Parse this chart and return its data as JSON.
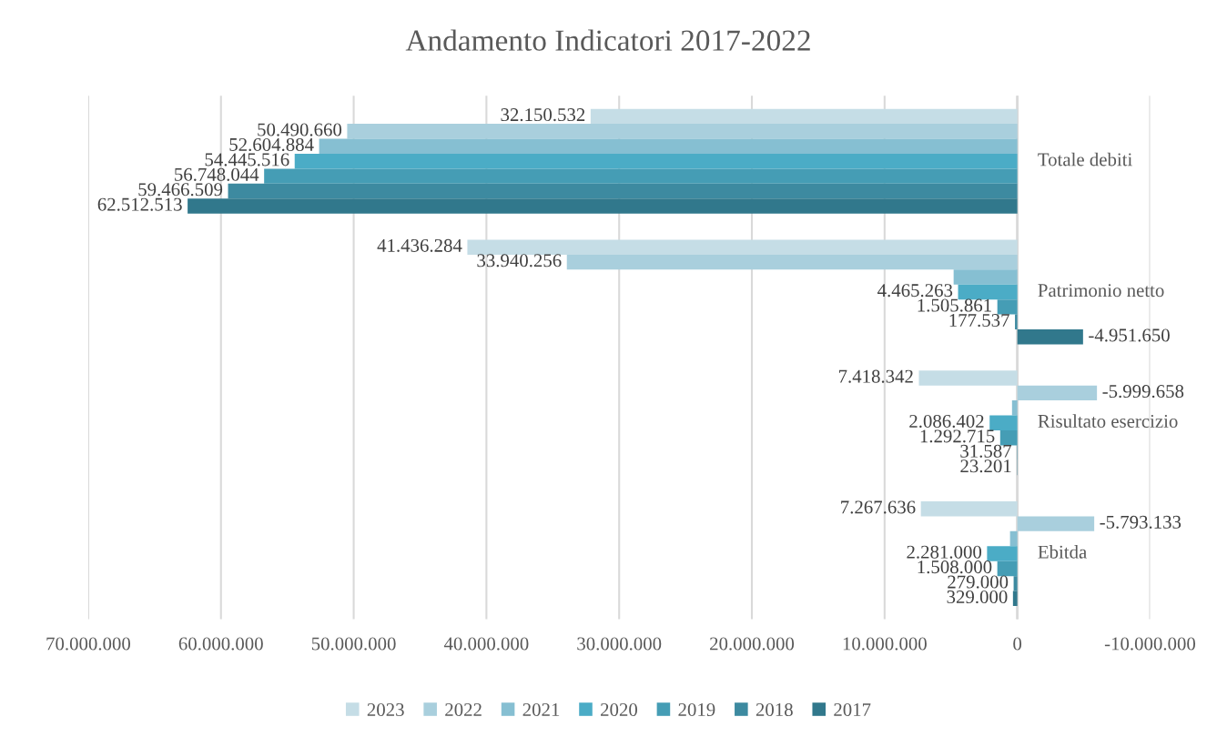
{
  "chart_data": {
    "type": "bar",
    "orientation": "horizontal",
    "title": "Andamento Indicatori 2017-2022",
    "categories": [
      "Totale debiti",
      "Patrimonio netto",
      "Risultato esercizio",
      "Ebitda"
    ],
    "series": [
      {
        "name": "2023",
        "color": "#c5dde6",
        "values": [
          32150532,
          41436284,
          7418342,
          7267636
        ],
        "value_labels": [
          "32.150.532",
          "41.436.284",
          "7.418.342",
          "7.267.636"
        ]
      },
      {
        "name": "2022",
        "color": "#a9cfdd",
        "values": [
          50490660,
          33940256,
          -5999658,
          -5793133
        ],
        "value_labels": [
          "50.490.660",
          "33.940.256",
          "-5.999.658",
          "-5.793.133"
        ]
      },
      {
        "name": "2021",
        "color": "#86bfd2",
        "values": [
          52604884,
          4800000,
          400000,
          550000
        ],
        "value_labels": [
          "52.604.884",
          null,
          null,
          null
        ]
      },
      {
        "name": "2020",
        "color": "#4bacc6",
        "values": [
          54445516,
          4465263,
          2086402,
          2281000
        ],
        "value_labels": [
          "54.445.516",
          "4.465.263",
          "2.086.402",
          "2.281.000"
        ]
      },
      {
        "name": "2019",
        "color": "#459db5",
        "values": [
          56748044,
          1505861,
          1292715,
          1508000
        ],
        "value_labels": [
          "56.748.044",
          "1.505.861",
          "1.292.715",
          "1.508.000"
        ]
      },
      {
        "name": "2018",
        "color": "#3d8aa0",
        "values": [
          59466509,
          177537,
          31587,
          279000
        ],
        "value_labels": [
          "59.466.509",
          "177.537",
          "31.587",
          "279.000"
        ]
      },
      {
        "name": "2017",
        "color": "#31788c",
        "values": [
          62512513,
          -4951650,
          23201,
          329000
        ],
        "value_labels": [
          "62.512.513",
          "-4.951.650",
          "23.201",
          "329.000"
        ]
      }
    ],
    "xlim": [
      70000000,
      -10000000
    ],
    "xticks": [
      {
        "value": 70000000,
        "label": "70.000.000"
      },
      {
        "value": 60000000,
        "label": "60.000.000"
      },
      {
        "value": 50000000,
        "label": "50.000.000"
      },
      {
        "value": 40000000,
        "label": "40.000.000"
      },
      {
        "value": 30000000,
        "label": "30.000.000"
      },
      {
        "value": 20000000,
        "label": "20.000.000"
      },
      {
        "value": 10000000,
        "label": "10.000.000"
      },
      0,
      {
        "value": -10000000,
        "label": "-10.000.000"
      }
    ],
    "grid": "x",
    "legend": "bottom"
  }
}
